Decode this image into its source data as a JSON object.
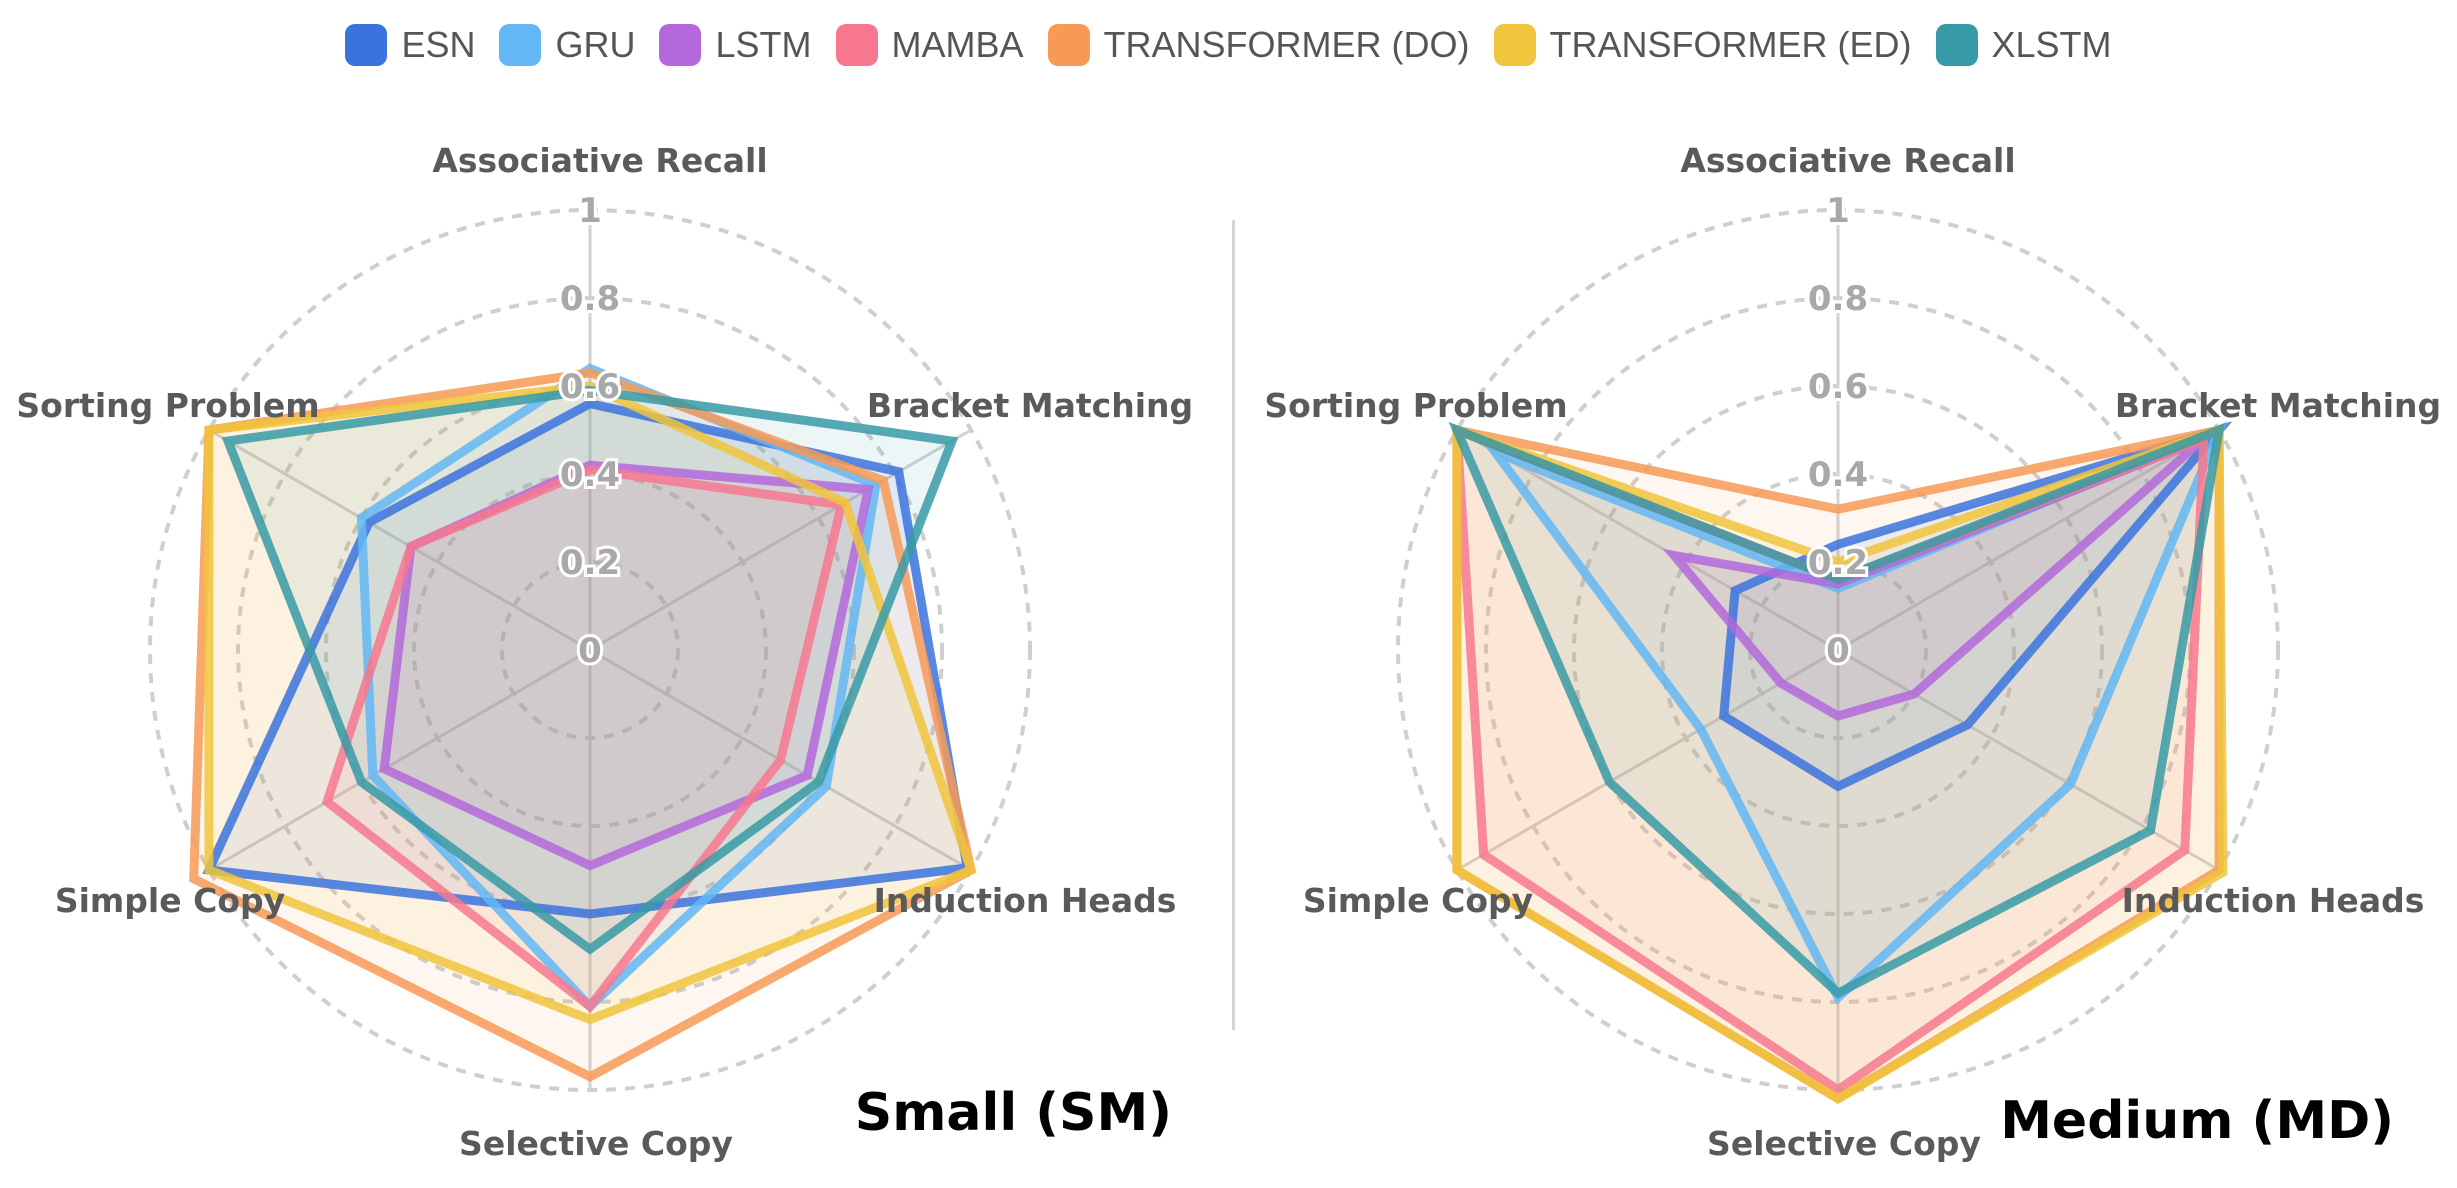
{
  "legend": {
    "items": [
      {
        "label": "ESN",
        "color": "#3b73dd"
      },
      {
        "label": "GRU",
        "color": "#63b7f5"
      },
      {
        "label": "LSTM",
        "color": "#b368db"
      },
      {
        "label": "MAMBA",
        "color": "#f7788e"
      },
      {
        "label": "TRANSFORMER (DO)",
        "color": "#f79a56"
      },
      {
        "label": "TRANSFORMER (ED)",
        "color": "#f0c43c"
      },
      {
        "label": "XLSTM",
        "color": "#379aa6"
      }
    ]
  },
  "chart_data": [
    {
      "type": "radar",
      "title": "Small (SM)",
      "axes": [
        "Associative Recall",
        "Bracket Matching",
        "Induction Heads",
        "Selective Copy",
        "Simple Copy",
        "Sorting Problem"
      ],
      "ticks": [
        "0",
        "0.2",
        "0.4",
        "0.6",
        "0.8",
        "1"
      ],
      "range": [
        0,
        1
      ],
      "series": [
        {
          "name": "ESN",
          "values": [
            0.56,
            0.81,
            0.99,
            0.6,
            1.0,
            0.58
          ]
        },
        {
          "name": "GRU",
          "values": [
            0.64,
            0.75,
            0.62,
            0.81,
            0.57,
            0.6
          ]
        },
        {
          "name": "LSTM",
          "values": [
            0.42,
            0.73,
            0.57,
            0.49,
            0.54,
            0.47
          ]
        },
        {
          "name": "MAMBA",
          "values": [
            0.41,
            0.66,
            0.5,
            0.81,
            0.69,
            0.47
          ]
        },
        {
          "name": "TRANSFORMER (DO)",
          "values": [
            0.63,
            0.77,
            1.0,
            0.97,
            1.04,
            1.0
          ]
        },
        {
          "name": "TRANSFORMER (ED)",
          "values": [
            0.6,
            0.67,
            1.0,
            0.84,
            1.0,
            1.0
          ]
        },
        {
          "name": "XLSTM",
          "values": [
            0.59,
            0.95,
            0.6,
            0.68,
            0.6,
            0.95
          ]
        }
      ]
    },
    {
      "type": "radar",
      "title": "Medium (MD)",
      "axes": [
        "Associative Recall",
        "Bracket Matching",
        "Induction Heads",
        "Selective Copy",
        "Simple Copy",
        "Sorting Problem"
      ],
      "ticks": [
        "0",
        "0.2",
        "0.4",
        "0.6",
        "0.8",
        "1"
      ],
      "range": [
        0,
        1
      ],
      "series": [
        {
          "name": "ESN",
          "values": [
            0.24,
            1.0,
            0.34,
            0.31,
            0.3,
            0.27
          ]
        },
        {
          "name": "GRU",
          "values": [
            0.14,
            1.0,
            0.61,
            0.79,
            0.36,
            0.9
          ]
        },
        {
          "name": "LSTM",
          "values": [
            0.15,
            0.96,
            0.2,
            0.15,
            0.15,
            0.43
          ]
        },
        {
          "name": "MAMBA",
          "values": [
            0.16,
            0.96,
            0.91,
            1.0,
            0.93,
            1.0
          ]
        },
        {
          "name": "TRANSFORMER (DO)",
          "values": [
            0.32,
            1.0,
            1.0,
            1.02,
            1.0,
            1.0
          ]
        },
        {
          "name": "TRANSFORMER (ED)",
          "values": [
            0.2,
            1.0,
            1.01,
            1.02,
            1.0,
            1.0
          ]
        },
        {
          "name": "XLSTM",
          "values": [
            0.16,
            1.0,
            0.82,
            0.78,
            0.6,
            1.0
          ]
        }
      ]
    }
  ]
}
